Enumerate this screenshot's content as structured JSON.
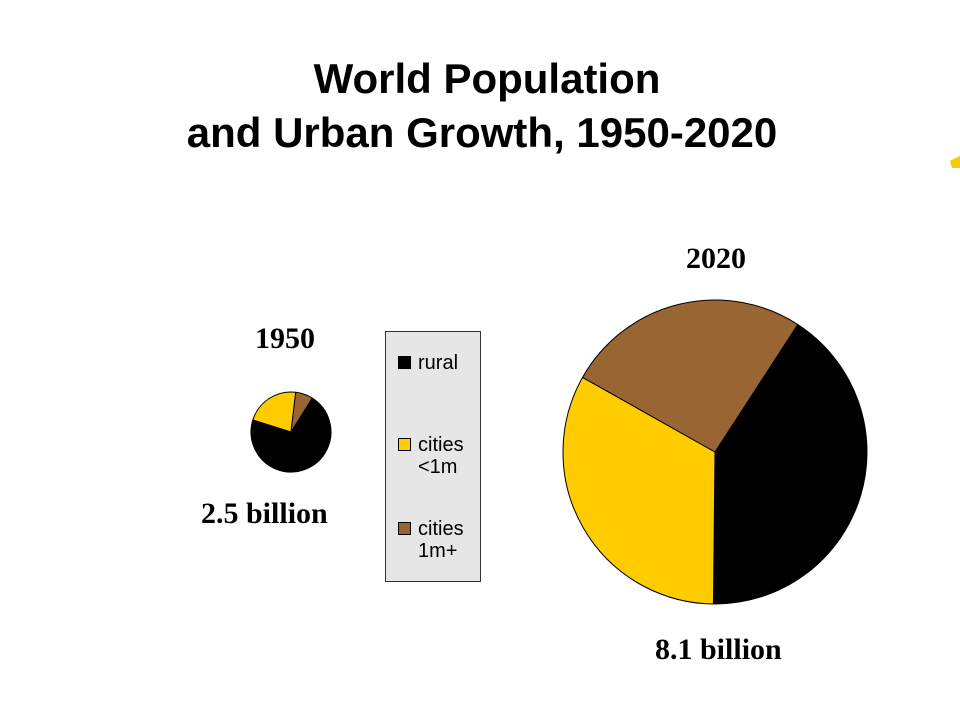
{
  "title_line1": "World Population",
  "title_line2": "and Urban Growth, 1950-2020",
  "colors": {
    "rural": "#000000",
    "cities_small": "#ffcc00",
    "cities_large": "#996633",
    "legend_bg": "#e6e6e6"
  },
  "legend": [
    {
      "key": "rural",
      "label": "rural"
    },
    {
      "key": "cities_small",
      "label": "cities\n<1m"
    },
    {
      "key": "cities_large",
      "label": "cities\n1m+"
    }
  ],
  "chart_data": [
    {
      "type": "pie",
      "title": "1950",
      "total_label": "2.5 billion",
      "total": 2.5,
      "slices": [
        {
          "name": "rural",
          "value": 0.71
        },
        {
          "name": "cities <1m",
          "value": 0.22
        },
        {
          "name": "cities 1m+",
          "value": 0.07
        }
      ]
    },
    {
      "type": "pie",
      "title": "2020",
      "total_label": "8.1 billion",
      "total": 8.1,
      "slices": [
        {
          "name": "rural",
          "value": 0.41
        },
        {
          "name": "cities <1m",
          "value": 0.33
        },
        {
          "name": "cities 1m+",
          "value": 0.26
        }
      ]
    }
  ]
}
